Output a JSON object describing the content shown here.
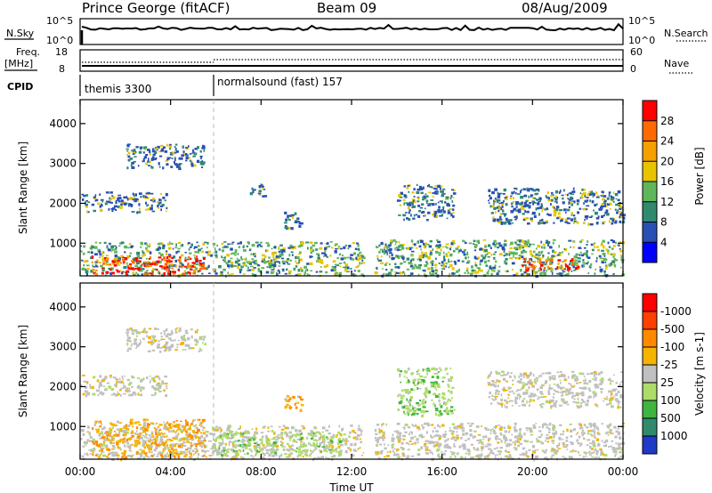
{
  "header": {
    "station": "Prince George (fitACF)",
    "beam": "Beam 09",
    "date": "08/Aug/2009"
  },
  "top_panels": {
    "nsky_label": "N.Sky",
    "nsearch_label": "N.Search",
    "nsky_ticks": [
      "10^5",
      "10^0"
    ],
    "nsky_right_ticks": [
      "10^5",
      "10^0"
    ],
    "freq_label_1": "Freq.",
    "freq_label_2": "[MHz]",
    "freq_ticks": [
      "18",
      "8"
    ],
    "nave_ticks": [
      "60",
      "0"
    ],
    "nave_label": "Nave",
    "cpid_label": "CPID",
    "cpid_modes": [
      {
        "name": "themis 3300"
      },
      {
        "name": "normalsound (fast) 157"
      }
    ]
  },
  "chart_data": [
    {
      "type": "heatmap",
      "title": "",
      "ylabel": "Slant Range [km]",
      "xlabel": "",
      "ylim": [
        180,
        4600
      ],
      "yticks": [
        "1000",
        "2000",
        "3000",
        "4000"
      ],
      "xticks": [
        "00:00",
        "04:00",
        "08:00",
        "12:00",
        "16:00",
        "20:00",
        "00:00"
      ],
      "colorbar": {
        "label": "Power [dB]",
        "ticks": [
          "4",
          "8",
          "12",
          "16",
          "20",
          "24",
          "28"
        ],
        "colors": [
          "#0000ff",
          "#2850b4",
          "#2f8a6e",
          "#5fb65a",
          "#e8c400",
          "#f5a000",
          "#ff6a00",
          "#ff0000"
        ]
      },
      "regions": [
        {
          "t0": 0.0,
          "t1": 12.5,
          "r0": 200,
          "r1": 1050,
          "level": "mid"
        },
        {
          "t0": 0.5,
          "t1": 5.5,
          "r0": 250,
          "r1": 700,
          "level": "high"
        },
        {
          "t0": 2.0,
          "t1": 5.5,
          "r0": 2900,
          "r1": 3500,
          "level": "low"
        },
        {
          "t0": 0.0,
          "t1": 3.8,
          "r0": 1800,
          "r1": 2300,
          "level": "low"
        },
        {
          "t0": 13.0,
          "t1": 24.0,
          "r0": 200,
          "r1": 1100,
          "level": "mid"
        },
        {
          "t0": 19.5,
          "t1": 22.0,
          "r0": 350,
          "r1": 650,
          "level": "high"
        },
        {
          "t0": 14.0,
          "t1": 16.5,
          "r0": 1600,
          "r1": 2500,
          "level": "low"
        },
        {
          "t0": 18.0,
          "t1": 24.0,
          "r0": 1500,
          "r1": 2400,
          "level": "low"
        },
        {
          "t0": 7.5,
          "t1": 8.2,
          "r0": 2200,
          "r1": 2500,
          "level": "low"
        },
        {
          "t0": 9.0,
          "t1": 9.8,
          "r0": 1400,
          "r1": 1800,
          "level": "low"
        }
      ]
    },
    {
      "type": "heatmap",
      "title": "",
      "ylabel": "Slant Range [km]",
      "xlabel": "Time UT",
      "ylim": [
        180,
        4600
      ],
      "yticks": [
        "1000",
        "2000",
        "3000",
        "4000"
      ],
      "xticks": [
        "00:00",
        "04:00",
        "08:00",
        "12:00",
        "16:00",
        "20:00",
        "00:00"
      ],
      "colorbar": {
        "label": "Velocity [m s-1]",
        "ticks": [
          "1000",
          "500",
          "100",
          "25",
          "-25",
          "-100",
          "-500",
          "-1000"
        ],
        "colors": [
          "#1e3cc8",
          "#2f8a6e",
          "#3fb43f",
          "#aedc6a",
          "#c0c0c0",
          "#f5b400",
          "#ff8a00",
          "#ff4000",
          "#ff0000"
        ]
      },
      "regions": [
        {
          "t0": 0.0,
          "t1": 12.5,
          "r0": 200,
          "r1": 1050,
          "level": "neutral"
        },
        {
          "t0": 5.8,
          "t1": 11.5,
          "r0": 300,
          "r1": 900,
          "level": "positive"
        },
        {
          "t0": 0.5,
          "t1": 5.5,
          "r0": 250,
          "r1": 1200,
          "level": "negative"
        },
        {
          "t0": 2.0,
          "t1": 5.5,
          "r0": 2900,
          "r1": 3500,
          "level": "neutral"
        },
        {
          "t0": 0.0,
          "t1": 3.8,
          "r0": 1800,
          "r1": 2300,
          "level": "neutral"
        },
        {
          "t0": 13.0,
          "t1": 24.0,
          "r0": 200,
          "r1": 1100,
          "level": "neutral"
        },
        {
          "t0": 14.0,
          "t1": 16.5,
          "r0": 1300,
          "r1": 2500,
          "level": "positive"
        },
        {
          "t0": 18.0,
          "t1": 24.0,
          "r0": 1500,
          "r1": 2400,
          "level": "neutral"
        },
        {
          "t0": 9.0,
          "t1": 9.8,
          "r0": 1400,
          "r1": 1800,
          "level": "negative"
        }
      ]
    }
  ]
}
